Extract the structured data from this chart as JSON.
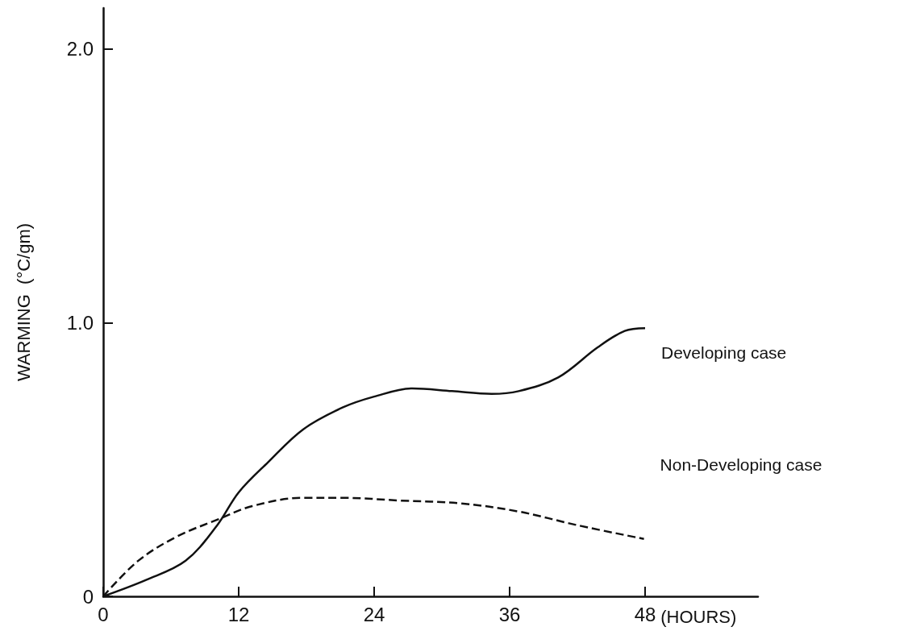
{
  "chart_data": {
    "type": "line",
    "xlabel": "(HOURS)",
    "ylabel": "WARMING  (°C/gm)",
    "xlim": [
      0,
      58
    ],
    "xticks": [
      0,
      12,
      24,
      36,
      48
    ],
    "ylim": [
      0,
      2.15
    ],
    "yticks": [
      0,
      {
        "value": 1,
        "label": "1.0"
      },
      {
        "value": 2,
        "label": "2.0"
      }
    ],
    "grid": false,
    "legend": false,
    "marker": "none",
    "series": [
      {
        "name": "Developing case",
        "color": "#111111",
        "line_style": "solid",
        "x": [
          0,
          3.8,
          7.3,
          10.1,
          12,
          14.6,
          17.7,
          21.2,
          24,
          27.4,
          30.9,
          34.4,
          36.8,
          40.3,
          43.8,
          46.2,
          48
        ],
        "values": [
          0,
          0.06,
          0.13,
          0.26,
          0.38,
          0.49,
          0.61,
          0.69,
          0.73,
          0.76,
          0.75,
          0.74,
          0.75,
          0.8,
          0.91,
          0.97,
          0.98
        ]
      },
      {
        "name": "Non-Developing case",
        "color": "#111111",
        "line_style": "dashed",
        "x": [
          0,
          3.1,
          6.6,
          10.1,
          13.2,
          17.7,
          21.2,
          26.4,
          31.6,
          36.8,
          42,
          47.9
        ],
        "values": [
          0,
          0.13,
          0.22,
          0.28,
          0.33,
          0.36,
          0.36,
          0.35,
          0.34,
          0.31,
          0.26,
          0.21
        ]
      }
    ]
  }
}
